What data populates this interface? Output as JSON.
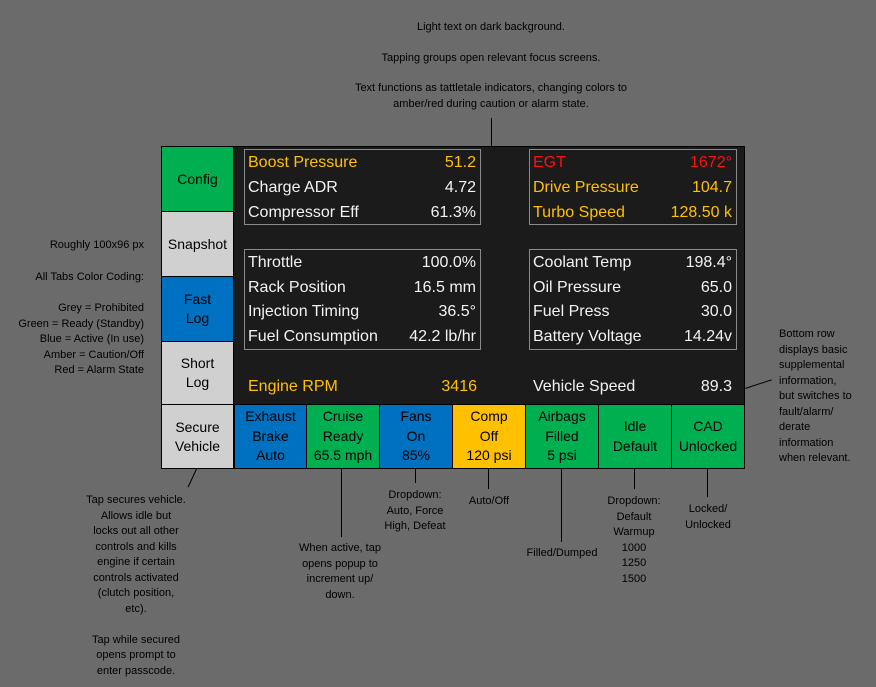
{
  "notes": {
    "top": [
      "Light text on dark background.",
      "Tapping groups open relevant focus screens.",
      "Text functions as tattletale indicators, changing colors to",
      "amber/red during caution or alarm state."
    ],
    "left": [
      "Roughly 100x96 px",
      "All Tabs Color Coding:",
      "Grey = Prohibited",
      "Green = Ready (Standby)",
      "Blue = Active (In use)",
      "Amber = Caution/Off",
      "Red = Alarm State"
    ],
    "right": [
      "Bottom row",
      "displays basic",
      "supplemental",
      "information,",
      "but switches to",
      "fault/alarm/",
      "derate",
      "information",
      "when relevant."
    ],
    "secure": [
      "Tap secures vehicle.",
      "Allows idle but",
      "locks out all other",
      "controls and kills",
      "engine if certain",
      "controls activated",
      "(clutch position,",
      "etc).",
      "",
      "Tap while secured",
      "opens prompt to",
      "enter passcode."
    ],
    "cruise": [
      "When active, tap",
      "opens popup to",
      "increment up/",
      "down."
    ],
    "fans": [
      "Dropdown:",
      "Auto, Force",
      "High, Defeat"
    ],
    "comp": [
      "Auto/Off"
    ],
    "airbags": [
      "Filled/Dumped"
    ],
    "idle": [
      "Dropdown:",
      "Default",
      "Warmup",
      "1000",
      "1250",
      "1500"
    ],
    "cad": [
      "Locked/",
      "Unlocked"
    ]
  },
  "colors": {
    "grey": "#d0d0d0",
    "green": "#00b050",
    "blue": "#0070c0",
    "amber": "#ffc000",
    "red": "#ff1010",
    "screen": "#1b1b1b",
    "background": "#6b6b6b"
  },
  "tabs": {
    "config": [
      "Config"
    ],
    "snapshot": [
      "Snapshot"
    ],
    "fast_log": [
      "Fast",
      "Log"
    ],
    "short_log": [
      "Short",
      "Log"
    ],
    "secure_vehicle": [
      "Secure",
      "Vehicle"
    ]
  },
  "panels": {
    "turbo": [
      {
        "label": "Boost Pressure",
        "value": "51.2",
        "state": "amber"
      },
      {
        "label": "Charge ADR",
        "value": "4.72",
        "state": "normal"
      },
      {
        "label": "Compressor Eff",
        "value": "61.3%",
        "state": "normal"
      }
    ],
    "exhaust": [
      {
        "label": "EGT",
        "value": "1672°",
        "state": "red"
      },
      {
        "label": "Drive Pressure",
        "value": "104.7",
        "state": "amber"
      },
      {
        "label": "Turbo Speed",
        "value": "128.50 k",
        "state": "amber"
      }
    ],
    "engine": [
      {
        "label": "Throttle",
        "value": "100.0%",
        "state": "normal"
      },
      {
        "label": "Rack Position",
        "value": "16.5 mm",
        "state": "normal"
      },
      {
        "label": "Injection Timing",
        "value": "36.5°",
        "state": "normal"
      },
      {
        "label": "Fuel Consumption",
        "value": "42.2 lb/hr",
        "state": "normal"
      }
    ],
    "vitals": [
      {
        "label": "Coolant Temp",
        "value": "198.4°",
        "state": "normal"
      },
      {
        "label": "Oil Pressure",
        "value": "65.0",
        "state": "normal"
      },
      {
        "label": "Fuel Press",
        "value": "30.0",
        "state": "normal"
      },
      {
        "label": "Battery Voltage",
        "value": "14.24v",
        "state": "normal"
      }
    ]
  },
  "bottom_row": {
    "engine_rpm": {
      "label": "Engine RPM",
      "value": "3416"
    },
    "vehicle_speed": {
      "label": "Vehicle Speed",
      "value": "89.3"
    }
  },
  "buttons": {
    "exhaust_brake": [
      "Exhaust",
      "Brake",
      "Auto"
    ],
    "cruise": [
      "Cruise",
      "Ready",
      "65.5 mph"
    ],
    "fans": [
      "Fans",
      "On",
      "85%"
    ],
    "comp": [
      "Comp",
      "Off",
      "120 psi"
    ],
    "airbags": [
      "Airbags",
      "Filled",
      "5 psi"
    ],
    "idle": [
      "Idle",
      "Default"
    ],
    "cad": [
      "CAD",
      "Unlocked"
    ]
  }
}
